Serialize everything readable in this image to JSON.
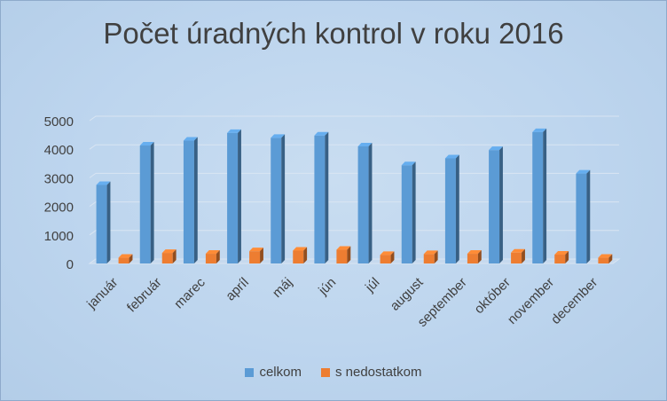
{
  "chart_data": {
    "type": "bar",
    "title": "Počet úradných kontrol v roku 2016",
    "categories": [
      "január",
      "február",
      "marec",
      "apríl",
      "máj",
      "jún",
      "júl",
      "august",
      "september",
      "október",
      "november",
      "december"
    ],
    "series": [
      {
        "name": "celkom",
        "color": "#5b9bd5",
        "values": [
          2750,
          4130,
          4300,
          4570,
          4400,
          4480,
          4100,
          3440,
          3680,
          3970,
          4600,
          3150
        ]
      },
      {
        "name": "s nedostatkom",
        "color": "#ed7d31",
        "values": [
          200,
          370,
          340,
          430,
          450,
          480,
          300,
          330,
          340,
          380,
          310,
          200
        ]
      }
    ],
    "yticks": [
      0,
      1000,
      2000,
      3000,
      4000,
      5000
    ],
    "ylim": [
      0,
      5000
    ],
    "grid": true,
    "legend_position": "bottom"
  }
}
